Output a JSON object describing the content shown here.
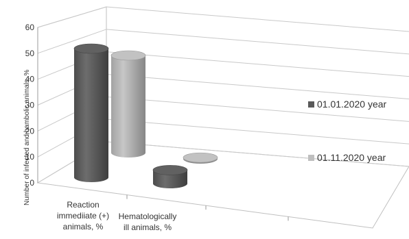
{
  "chart_data": {
    "type": "bar",
    "style": "3d-cylinder",
    "categories": [
      "Reaction immediiate (+) animals, %",
      "Hematologically ill animals, %"
    ],
    "category_lines": [
      [
        "Reaction",
        "immediiate (+)",
        "animals, %"
      ],
      [
        "Hematologically",
        "ill animals, %"
      ]
    ],
    "series": [
      {
        "name": "01.01.2020 year",
        "values": [
          48,
          5
        ],
        "color": "#595959"
      },
      {
        "name": "01.11.2020 year",
        "values": [
          38,
          0.5
        ],
        "color": "#bfbfbf"
      }
    ],
    "ylabel": "Number of infected and hambolic animals, %",
    "yticks": [
      0,
      10,
      20,
      30,
      40,
      50,
      60
    ],
    "ylim": [
      0,
      60
    ],
    "grid": true,
    "legend_position": "right"
  }
}
